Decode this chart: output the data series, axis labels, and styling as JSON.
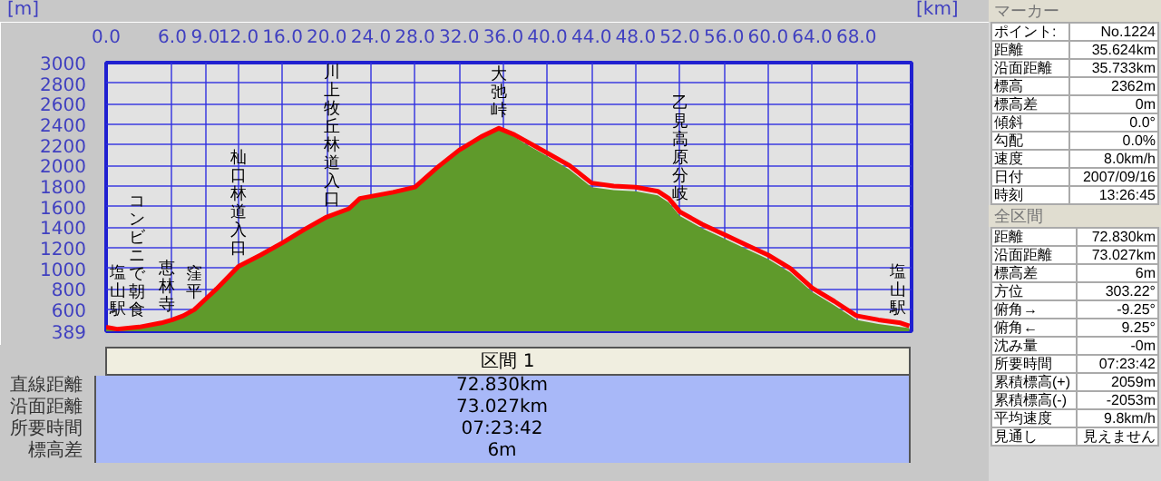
{
  "chart_data": {
    "type": "area",
    "xlabel": "[km]",
    "ylabel": "[m]",
    "xlim": [
      0,
      73
    ],
    "ylim": [
      389,
      3000
    ],
    "xticks": [
      {
        "value": 0,
        "label": "0.0"
      },
      {
        "value": 6,
        "label": "6.0"
      },
      {
        "value": 9,
        "label": "9.0"
      },
      {
        "value": 12,
        "label": "12.0"
      },
      {
        "value": 16,
        "label": "16.0"
      },
      {
        "value": 20,
        "label": "20.0"
      },
      {
        "value": 24,
        "label": "24.0"
      },
      {
        "value": 28,
        "label": "28.0"
      },
      {
        "value": 32,
        "label": "32.0"
      },
      {
        "value": 36,
        "label": "36.0"
      },
      {
        "value": 40,
        "label": "40.0"
      },
      {
        "value": 44,
        "label": "44.0"
      },
      {
        "value": 48,
        "label": "48.0"
      },
      {
        "value": 52,
        "label": "52.0"
      },
      {
        "value": 56,
        "label": "56.0"
      },
      {
        "value": 60,
        "label": "60.0"
      },
      {
        "value": 64,
        "label": "64.0"
      },
      {
        "value": 68,
        "label": "68.0"
      }
    ],
    "yticks": [
      389,
      600,
      800,
      1000,
      1200,
      1400,
      1600,
      1800,
      2000,
      2200,
      2400,
      2600,
      2800,
      3000
    ],
    "grid": true,
    "series": [
      {
        "color": "#5f9a2b",
        "x": [
          0,
          1,
          3,
          5,
          6,
          7,
          8,
          9,
          10,
          12,
          14,
          16,
          18,
          20,
          22,
          23,
          24,
          26,
          28,
          30,
          32,
          34,
          35.6,
          37,
          38,
          40,
          42,
          44,
          46,
          48,
          50,
          51,
          52,
          54,
          56,
          58,
          60,
          62,
          64,
          66,
          68,
          70,
          72,
          72.8
        ],
        "values": [
          420,
          400,
          420,
          460,
          490,
          530,
          590,
          690,
          790,
          1010,
          1120,
          1240,
          1370,
          1490,
          1570,
          1670,
          1690,
          1730,
          1780,
          1970,
          2140,
          2270,
          2350,
          2280,
          2210,
          2090,
          1960,
          1790,
          1760,
          1750,
          1710,
          1640,
          1510,
          1390,
          1290,
          1190,
          1090,
          960,
          770,
          640,
          500,
          460,
          430,
          420
        ]
      },
      {
        "type": "line",
        "color": "#ff0000",
        "x": [
          0,
          1,
          3,
          5,
          6,
          7,
          8,
          9,
          10,
          12,
          14,
          16,
          18,
          20,
          22,
          23,
          24,
          26,
          28,
          30,
          32,
          34,
          35.6,
          37,
          38,
          40,
          42,
          44,
          46,
          48,
          50,
          51,
          52,
          54,
          56,
          58,
          60,
          62,
          64,
          66,
          68,
          70,
          72,
          72.8
        ],
        "values": [
          430,
          410,
          430,
          470,
          500,
          540,
          600,
          700,
          800,
          1020,
          1130,
          1250,
          1380,
          1500,
          1580,
          1680,
          1700,
          1740,
          1790,
          1980,
          2150,
          2280,
          2362,
          2300,
          2240,
          2120,
          2000,
          1830,
          1800,
          1790,
          1750,
          1680,
          1550,
          1430,
          1330,
          1230,
          1130,
          1000,
          810,
          680,
          540,
          500,
          470,
          440
        ]
      }
    ],
    "annotations": [
      {
        "text": "塩山駅",
        "x": 0,
        "y": 430
      },
      {
        "text": "コンビニで朝食",
        "x": 2.8,
        "y": 425
      },
      {
        "text": "恵林寺",
        "x": 5.5,
        "y": 480
      },
      {
        "text": "窪平",
        "x": 8,
        "y": 600
      },
      {
        "text": "杣口林道入口",
        "x": 12,
        "y": 1020
      },
      {
        "text": "川上牧丘林道入口",
        "x": 20.5,
        "y": 1500
      },
      {
        "text": "大弛峠",
        "x": 35.6,
        "y": 2362
      },
      {
        "text": "乙見高原分岐",
        "x": 52,
        "y": 1550
      },
      {
        "text": "塩山駅",
        "x": 72.8,
        "y": 440
      },
      "区間 1",
      "直線距離",
      "72.830km",
      "沿面距離",
      "73.027km",
      "所要時間",
      "07:23:42",
      "標高差",
      "6m",
      "マーカー",
      "ポイント:",
      "No.1224",
      "距離",
      "35.624km",
      "沿面距離",
      "35.733km",
      "標高",
      "2362m",
      "標高差",
      "0m",
      "傾斜",
      "0.0°",
      "勾配",
      "0.0%",
      "速度",
      "8.0km/h",
      "日付",
      "2007/09/16",
      "時刻",
      "13:26:45",
      "全区間",
      "距離",
      "72.830km",
      "沿面距離",
      "73.027km",
      "標高差",
      "6m",
      "方位",
      "303.22°",
      "俯角→",
      "-9.25°",
      "俯角←",
      "9.25°",
      "沈み量",
      "-0m",
      "所要時間",
      "07:23:42",
      "累積標高(+)",
      "2059m",
      "累積標高(-)",
      "-2053m",
      "平均速度",
      "9.8km/h",
      "見通し",
      "見えません"
    ]
  }
}
